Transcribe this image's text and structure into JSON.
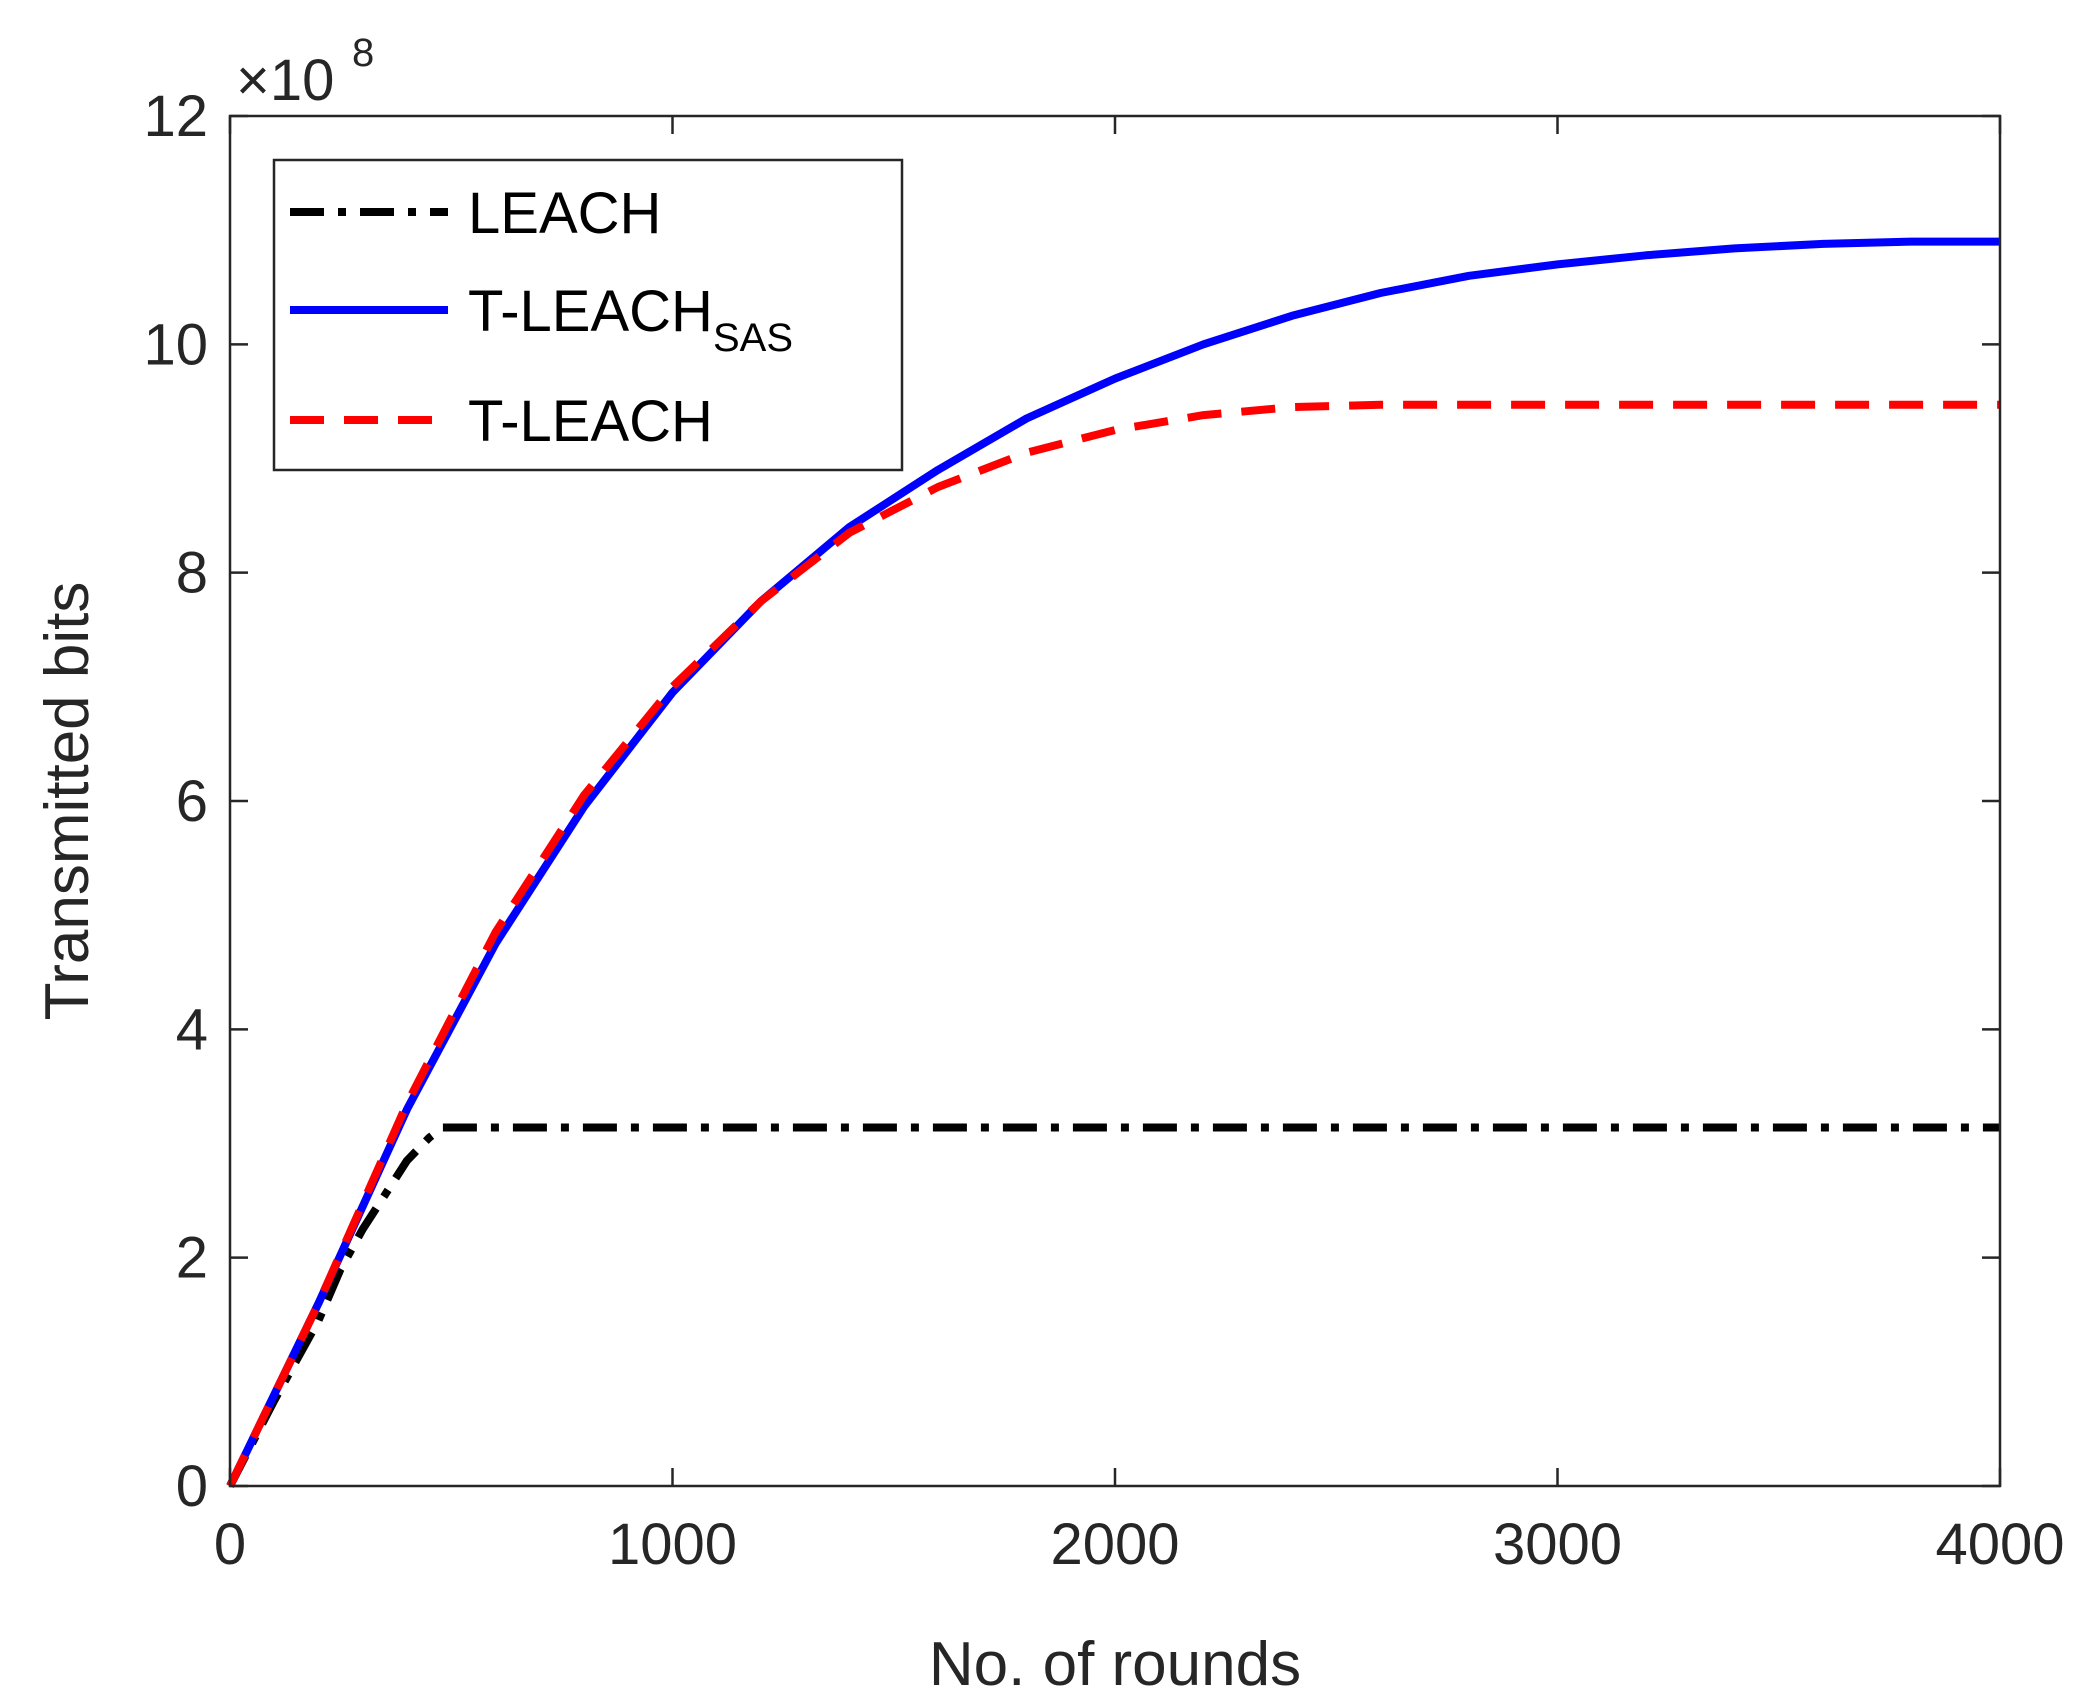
{
  "chart_data": {
    "type": "line",
    "xlabel": "No. of rounds",
    "ylabel": "Transmitted bits",
    "xlim": [
      0,
      4000
    ],
    "ylim": [
      0,
      12
    ],
    "xticks": [
      0,
      1000,
      2000,
      3000,
      4000
    ],
    "yticks": [
      0,
      2,
      4,
      6,
      8,
      10,
      12
    ],
    "y_exponent_label": {
      "base": "×10",
      "power": "8"
    },
    "grid": false,
    "legend_position": "top-left",
    "series": [
      {
        "name": "LEACH",
        "legend_main": "LEACH",
        "legend_sub": "",
        "color": "#000000",
        "dash": "dashdot",
        "x": [
          0,
          100,
          200,
          250,
          300,
          350,
          400,
          450,
          480,
          500,
          1000,
          2000,
          3000,
          4000
        ],
        "y": [
          0,
          0.75,
          1.45,
          1.9,
          2.25,
          2.55,
          2.85,
          3.05,
          3.14,
          3.14,
          3.14,
          3.14,
          3.14,
          3.14
        ]
      },
      {
        "name": "T-LEACH_SAS",
        "legend_main": "T-LEACH",
        "legend_sub": "SAS",
        "color": "#0000ff",
        "dash": "solid",
        "x": [
          0,
          200,
          400,
          600,
          800,
          1000,
          1200,
          1400,
          1600,
          1800,
          2000,
          2200,
          2400,
          2600,
          2800,
          3000,
          3200,
          3400,
          3600,
          3800,
          4000
        ],
        "y": [
          0,
          1.6,
          3.3,
          4.75,
          5.95,
          6.95,
          7.75,
          8.4,
          8.9,
          9.35,
          9.7,
          10.0,
          10.25,
          10.45,
          10.6,
          10.7,
          10.78,
          10.84,
          10.88,
          10.9,
          10.9
        ]
      },
      {
        "name": "T-LEACH",
        "legend_main": "T-LEACH",
        "legend_sub": "",
        "color": "#ff0000",
        "dash": "dashed",
        "x": [
          0,
          200,
          400,
          600,
          800,
          1000,
          1200,
          1400,
          1600,
          1800,
          2000,
          2200,
          2400,
          2600,
          3000,
          3500,
          4000
        ],
        "y": [
          0,
          1.6,
          3.35,
          4.85,
          6.05,
          7.0,
          7.75,
          8.35,
          8.75,
          9.05,
          9.25,
          9.38,
          9.45,
          9.47,
          9.47,
          9.47,
          9.47
        ]
      }
    ]
  }
}
